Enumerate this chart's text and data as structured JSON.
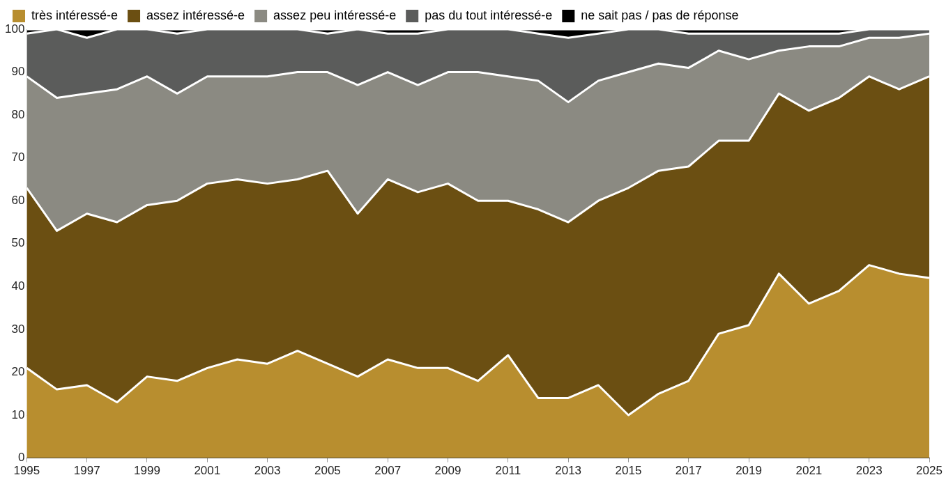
{
  "chart_data": {
    "type": "area",
    "stacked": true,
    "x": [
      1995,
      1996,
      1997,
      1998,
      1999,
      2000,
      2001,
      2002,
      2003,
      2004,
      2005,
      2006,
      2007,
      2008,
      2009,
      2010,
      2011,
      2012,
      2013,
      2014,
      2015,
      2016,
      2017,
      2018,
      2019,
      2020,
      2021,
      2022,
      2023,
      2024,
      2025
    ],
    "series": [
      {
        "name": "très intéressé-e",
        "color": "#b88e2f",
        "values": [
          21,
          16,
          17,
          13,
          19,
          18,
          21,
          23,
          22,
          25,
          22,
          19,
          23,
          21,
          21,
          18,
          24,
          14,
          14,
          17,
          10,
          15,
          18,
          29,
          31,
          43,
          36,
          39,
          45,
          43,
          42
        ]
      },
      {
        "name": "assez intéressé-e",
        "color": "#6b4f12",
        "values": [
          42,
          37,
          40,
          42,
          40,
          42,
          43,
          42,
          42,
          40,
          45,
          38,
          42,
          41,
          43,
          42,
          36,
          44,
          41,
          43,
          53,
          52,
          50,
          45,
          43,
          42,
          45,
          45,
          44,
          43,
          47
        ]
      },
      {
        "name": "assez peu intéressé-e",
        "color": "#8b8a82",
        "values": [
          26,
          31,
          28,
          31,
          30,
          25,
          25,
          24,
          25,
          25,
          23,
          30,
          25,
          25,
          26,
          30,
          29,
          30,
          28,
          28,
          27,
          25,
          23,
          21,
          19,
          10,
          15,
          12,
          9,
          12,
          10
        ]
      },
      {
        "name": "pas du tout intéressé-e",
        "color": "#5b5c5b",
        "values": [
          10,
          16,
          13,
          14,
          11,
          14,
          11,
          11,
          11,
          10,
          9,
          13,
          9,
          12,
          10,
          10,
          11,
          11,
          15,
          11,
          10,
          8,
          8,
          4,
          6,
          4,
          3,
          3,
          2,
          2,
          1
        ]
      },
      {
        "name": "ne sait pas / pas de réponse",
        "color": "#000000",
        "values": [
          1,
          0,
          2,
          0,
          0,
          1,
          0,
          0,
          0,
          0,
          1,
          0,
          1,
          1,
          0,
          0,
          0,
          1,
          2,
          1,
          0,
          0,
          1,
          1,
          1,
          1,
          1,
          1,
          0,
          0,
          0
        ]
      }
    ],
    "xlim": [
      1995,
      2025
    ],
    "xticks": [
      1995,
      1997,
      1999,
      2001,
      2003,
      2005,
      2007,
      2009,
      2011,
      2013,
      2015,
      2017,
      2019,
      2021,
      2023,
      2025
    ],
    "ylim": [
      0,
      100
    ],
    "yticks": [
      0,
      10,
      20,
      30,
      40,
      50,
      60,
      70,
      80,
      90,
      100
    ],
    "grid": "y",
    "legend": "top left"
  }
}
